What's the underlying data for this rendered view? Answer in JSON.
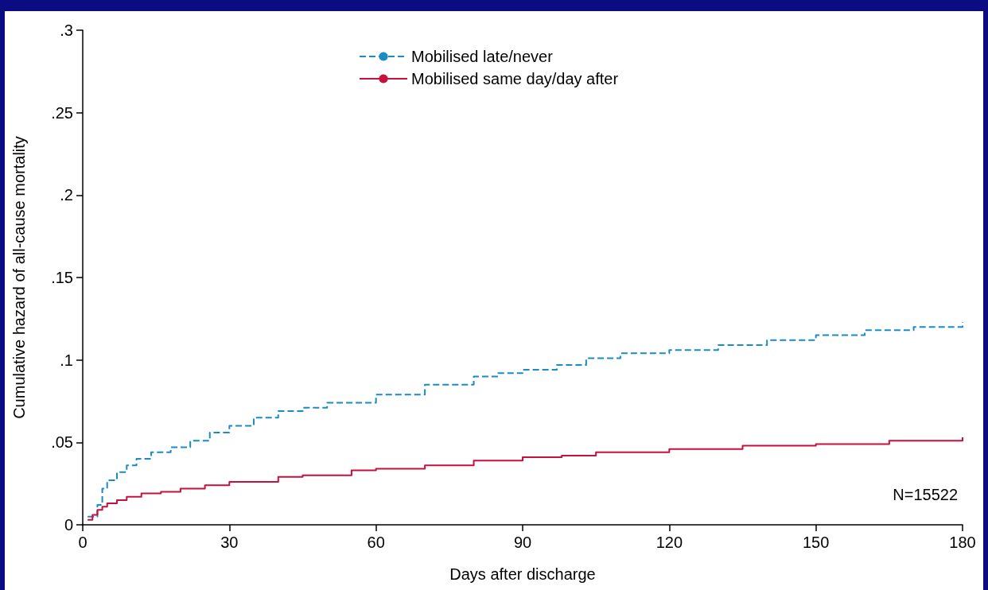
{
  "chart_data": {
    "type": "step",
    "xlabel": "Days after discharge",
    "ylabel": "Cumulative hazard of all-cause mortality",
    "xlim": [
      0,
      180
    ],
    "xticks": [
      0,
      30,
      60,
      90,
      120,
      150,
      180
    ],
    "ylim": [
      0,
      0.3
    ],
    "yticks": [
      0,
      {
        "value": 0.05,
        "label": ".05"
      },
      {
        "value": 0.1,
        "label": ".1"
      },
      {
        "value": 0.15,
        "label": ".15"
      },
      {
        "value": 0.2,
        "label": ".2"
      },
      {
        "value": 0.25,
        "label": ".25"
      },
      {
        "value": 0.3,
        "label": ".3"
      }
    ],
    "grid": false,
    "legend": "top",
    "marker": "none",
    "annotations": [
      "N=15522"
    ],
    "series": [
      {
        "name": "Mobilised late/never",
        "color": "#1a8cc4",
        "line_style": "dashed",
        "x": [
          1,
          2,
          3,
          4,
          5,
          7,
          9,
          11,
          14,
          18,
          22,
          26,
          30,
          35,
          40,
          45,
          50,
          60,
          70,
          80,
          85,
          90,
          97,
          103,
          110,
          120,
          130,
          140,
          150,
          160,
          170,
          180
        ],
        "values": [
          0.005,
          0.005,
          0.012,
          0.022,
          0.027,
          0.032,
          0.036,
          0.04,
          0.044,
          0.047,
          0.051,
          0.056,
          0.06,
          0.065,
          0.069,
          0.071,
          0.074,
          0.079,
          0.085,
          0.09,
          0.092,
          0.094,
          0.097,
          0.101,
          0.104,
          0.106,
          0.109,
          0.112,
          0.115,
          0.118,
          0.12,
          0.123
        ]
      },
      {
        "name": "Mobilised same day/day after",
        "color": "#c8103c",
        "line_style": "solid",
        "x": [
          1,
          2,
          3,
          4,
          5,
          7,
          9,
          12,
          16,
          20,
          25,
          30,
          40,
          45,
          55,
          60,
          70,
          80,
          90,
          98,
          105,
          120,
          135,
          150,
          165,
          180
        ],
        "values": [
          0.003,
          0.006,
          0.009,
          0.011,
          0.013,
          0.015,
          0.017,
          0.019,
          0.02,
          0.022,
          0.024,
          0.026,
          0.029,
          0.03,
          0.033,
          0.034,
          0.036,
          0.039,
          0.041,
          0.042,
          0.044,
          0.046,
          0.048,
          0.049,
          0.051,
          0.053
        ]
      }
    ]
  }
}
